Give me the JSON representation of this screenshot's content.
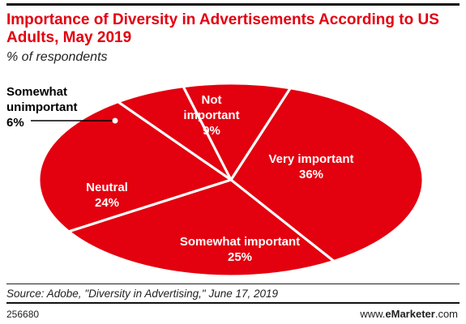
{
  "header": {
    "title": "Importance of Diversity in Advertisements According to US Adults, May 2019",
    "subtitle": "% of respondents"
  },
  "chart_data": {
    "type": "pie",
    "title": "Importance of Diversity in Advertisements According to US Adults, May 2019",
    "subtitle": "% of respondents",
    "slices": [
      {
        "label": "Very important",
        "value": 36,
        "display": "36%"
      },
      {
        "label": "Somewhat important",
        "value": 25,
        "display": "25%"
      },
      {
        "label": "Neutral",
        "value": 24,
        "display": "24%"
      },
      {
        "label": "Somewhat unimportant",
        "value": 6,
        "display": "6%"
      },
      {
        "label": "Not important",
        "value": 9,
        "display": "9%"
      }
    ],
    "colors": {
      "slice_fill": "#e3000f",
      "separator": "#ffffff",
      "inside_label": "#ffffff",
      "outside_label": "#000000"
    }
  },
  "footer": {
    "source": "Source: Adobe, \"Diversity in Advertising,\" June 17, 2019",
    "chart_id": "256680",
    "brand_prefix": "www.",
    "brand_bold": "eMarketer",
    "brand_suffix": ".com"
  },
  "colors": {
    "accent": "#e3000f",
    "text": "#222222"
  }
}
